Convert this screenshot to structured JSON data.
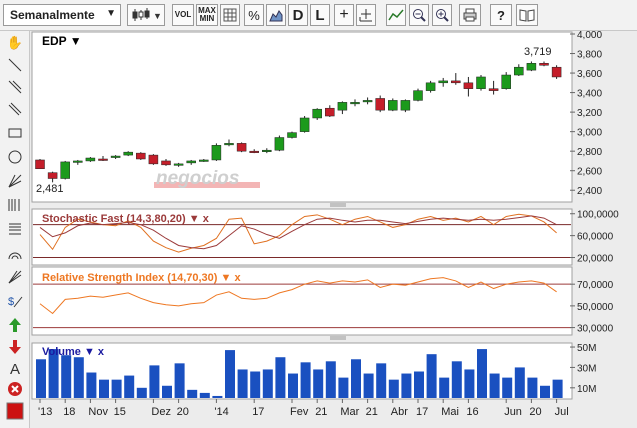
{
  "toolbar": {
    "period": "Semanalmente",
    "vol_label": "VOL",
    "maxmin_top": "MAX",
    "maxmin_bottom": "MIN",
    "percent_label": "%",
    "d_label": "D",
    "l_label": "L",
    "help_label": "?"
  },
  "sidebar": {
    "text_tool": "A"
  },
  "chart_data": [
    {
      "type": "candlestick",
      "title": "EDP",
      "ylim": [
        2300,
        4000
      ],
      "y_ticks": [
        "4,000",
        "3,800",
        "3,600",
        "3,400",
        "3,200",
        "3,000",
        "2,800",
        "2,600",
        "2,400"
      ],
      "annotations": {
        "high": "3,719",
        "low": "2,481"
      },
      "watermark": "negocios",
      "candles": [
        {
          "o": 2710,
          "h": 2720,
          "l": 2620,
          "c": 2620
        },
        {
          "o": 2580,
          "h": 2590,
          "l": 2481,
          "c": 2520
        },
        {
          "o": 2520,
          "h": 2700,
          "l": 2510,
          "c": 2690
        },
        {
          "o": 2690,
          "h": 2710,
          "l": 2660,
          "c": 2700
        },
        {
          "o": 2700,
          "h": 2740,
          "l": 2690,
          "c": 2730
        },
        {
          "o": 2720,
          "h": 2750,
          "l": 2700,
          "c": 2710
        },
        {
          "o": 2740,
          "h": 2760,
          "l": 2720,
          "c": 2750
        },
        {
          "o": 2760,
          "h": 2800,
          "l": 2750,
          "c": 2790
        },
        {
          "o": 2780,
          "h": 2790,
          "l": 2710,
          "c": 2720
        },
        {
          "o": 2760,
          "h": 2770,
          "l": 2660,
          "c": 2670
        },
        {
          "o": 2700,
          "h": 2720,
          "l": 2650,
          "c": 2660
        },
        {
          "o": 2660,
          "h": 2680,
          "l": 2640,
          "c": 2670
        },
        {
          "o": 2680,
          "h": 2710,
          "l": 2660,
          "c": 2700
        },
        {
          "o": 2700,
          "h": 2720,
          "l": 2690,
          "c": 2710
        },
        {
          "o": 2710,
          "h": 2880,
          "l": 2700,
          "c": 2860
        },
        {
          "o": 2870,
          "h": 2920,
          "l": 2850,
          "c": 2880
        },
        {
          "o": 2880,
          "h": 2890,
          "l": 2790,
          "c": 2800
        },
        {
          "o": 2800,
          "h": 2820,
          "l": 2780,
          "c": 2790
        },
        {
          "o": 2800,
          "h": 2830,
          "l": 2780,
          "c": 2810
        },
        {
          "o": 2810,
          "h": 2960,
          "l": 2800,
          "c": 2940
        },
        {
          "o": 2940,
          "h": 3000,
          "l": 2930,
          "c": 2990
        },
        {
          "o": 3000,
          "h": 3160,
          "l": 2990,
          "c": 3140
        },
        {
          "o": 3140,
          "h": 3240,
          "l": 3120,
          "c": 3230
        },
        {
          "o": 3240,
          "h": 3270,
          "l": 3150,
          "c": 3160
        },
        {
          "o": 3220,
          "h": 3310,
          "l": 3180,
          "c": 3300
        },
        {
          "o": 3290,
          "h": 3330,
          "l": 3260,
          "c": 3300
        },
        {
          "o": 3320,
          "h": 3350,
          "l": 3280,
          "c": 3320
        },
        {
          "o": 3340,
          "h": 3370,
          "l": 3200,
          "c": 3220
        },
        {
          "o": 3220,
          "h": 3340,
          "l": 3210,
          "c": 3320
        },
        {
          "o": 3220,
          "h": 3330,
          "l": 3200,
          "c": 3320
        },
        {
          "o": 3320,
          "h": 3440,
          "l": 3310,
          "c": 3420
        },
        {
          "o": 3420,
          "h": 3520,
          "l": 3400,
          "c": 3500
        },
        {
          "o": 3500,
          "h": 3550,
          "l": 3460,
          "c": 3520
        },
        {
          "o": 3520,
          "h": 3600,
          "l": 3480,
          "c": 3500
        },
        {
          "o": 3500,
          "h": 3560,
          "l": 3360,
          "c": 3440
        },
        {
          "o": 3440,
          "h": 3580,
          "l": 3420,
          "c": 3560
        },
        {
          "o": 3440,
          "h": 3520,
          "l": 3380,
          "c": 3420
        },
        {
          "o": 3440,
          "h": 3610,
          "l": 3430,
          "c": 3580
        },
        {
          "o": 3580,
          "h": 3690,
          "l": 3570,
          "c": 3660
        },
        {
          "o": 3630,
          "h": 3719,
          "l": 3620,
          "c": 3700
        },
        {
          "o": 3700,
          "h": 3719,
          "l": 3670,
          "c": 3680
        },
        {
          "o": 3660,
          "h": 3680,
          "l": 3540,
          "c": 3560
        }
      ]
    },
    {
      "type": "line",
      "title": "Stochastic Fast (14,3,80,20)",
      "ylim": [
        10000,
        105000
      ],
      "y_ticks": [
        "100,0000",
        "60,0000",
        "20,0000"
      ],
      "levels": [
        80000,
        20000
      ],
      "series": [
        {
          "values": [
            62000,
            35000,
            75000,
            90000,
            85000,
            80000,
            78000,
            87000,
            75000,
            50000,
            38000,
            30000,
            37000,
            42000,
            55000,
            90000,
            92000,
            45000,
            50000,
            60000,
            80000,
            95000,
            98000,
            90000,
            80000,
            90000,
            95000,
            85000,
            75000,
            80000,
            90000,
            95000,
            88000,
            92000,
            85000,
            95000,
            80000,
            95000,
            99000,
            96000,
            85000,
            65000
          ]
        },
        {
          "values": [
            75000,
            58000,
            65000,
            78000,
            83000,
            80000,
            82000,
            84000,
            80000,
            70000,
            55000,
            42000,
            38000,
            36000,
            42000,
            60000,
            78000,
            72000,
            62000,
            55000,
            68000,
            80000,
            90000,
            92000,
            88000,
            85000,
            88000,
            88000,
            85000,
            82000,
            86000,
            90000,
            92000,
            90000,
            88000,
            90000,
            88000,
            90000,
            93000,
            96000,
            92000,
            80000
          ]
        }
      ]
    },
    {
      "type": "line",
      "title": "Relative Strength Index (14,70,30)",
      "ylim": [
        25000,
        84000
      ],
      "y_ticks": [
        "70,0000",
        "50,0000",
        "30,0000"
      ],
      "levels": [
        70000,
        30000
      ],
      "series": [
        {
          "values": [
            52000,
            43000,
            56000,
            57000,
            59000,
            58000,
            60000,
            62000,
            57000,
            53000,
            51000,
            50000,
            52000,
            53000,
            60000,
            63000,
            57000,
            56000,
            57000,
            62000,
            65000,
            70000,
            73000,
            71000,
            73000,
            72000,
            74000,
            67000,
            70000,
            69000,
            72000,
            75000,
            76000,
            73000,
            67000,
            72000,
            66000,
            70000,
            72000,
            73000,
            71000,
            63000
          ]
        }
      ]
    },
    {
      "type": "bar",
      "title": "Volume",
      "ylim": [
        0,
        52
      ],
      "y_ticks": [
        "50M",
        "30M",
        "10M"
      ],
      "values": [
        38,
        48,
        42,
        40,
        25,
        18,
        18,
        22,
        10,
        32,
        12,
        34,
        8,
        5,
        2,
        47,
        28,
        26,
        28,
        40,
        24,
        35,
        28,
        36,
        20,
        38,
        24,
        34,
        18,
        24,
        26,
        43,
        20,
        36,
        28,
        48,
        24,
        20,
        30,
        20,
        12,
        18
      ]
    }
  ],
  "x_axis_labels": [
    "'13",
    "18",
    "Nov",
    "15",
    "Dez",
    "20",
    "'14",
    "17",
    "Fev",
    "21",
    "Mar",
    "21",
    "Abr",
    "17",
    "Mai",
    "16",
    "Jun",
    "20",
    "Jul"
  ]
}
